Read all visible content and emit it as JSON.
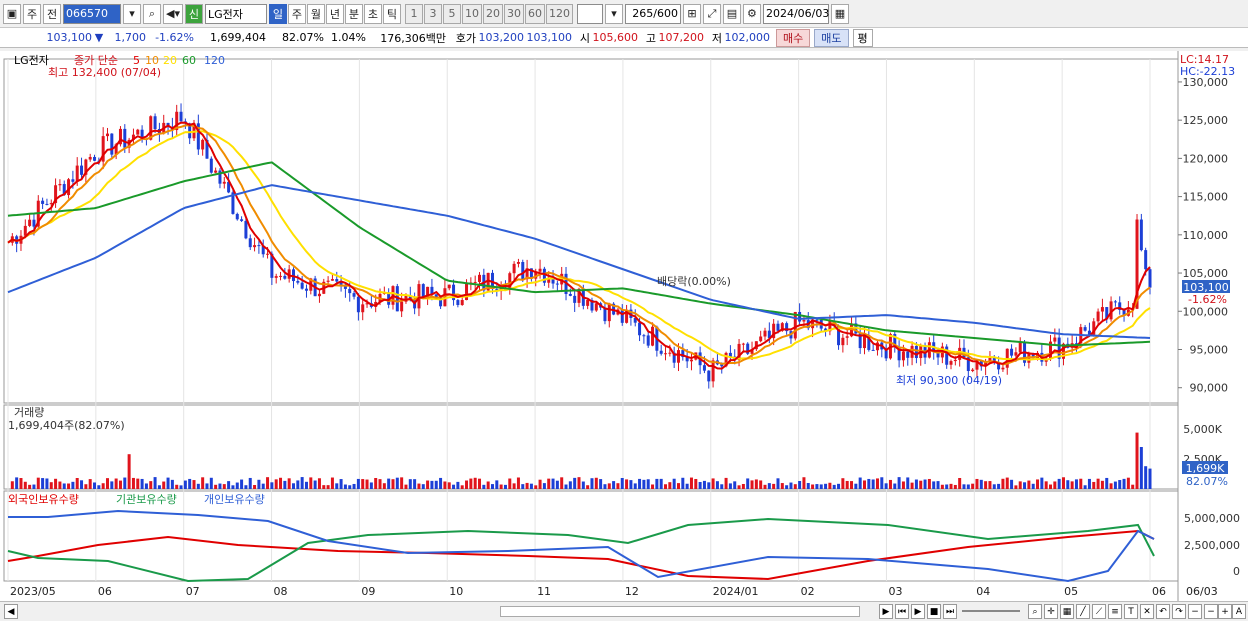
{
  "toolbar": {
    "period_unit": "주",
    "nav_prev": "전",
    "code": "066570",
    "badge": "신",
    "name": "LG전자",
    "periods": [
      "일",
      "주",
      "월",
      "년",
      "분",
      "초",
      "틱"
    ],
    "intervals": [
      "1",
      "3",
      "5",
      "10",
      "20",
      "30",
      "60",
      "120"
    ],
    "count": "265",
    "max": "/600",
    "date": "2024/06/03"
  },
  "quote": {
    "price": "103,100",
    "change": "1,700",
    "rate": "-1.62%",
    "volume": "1,699,404",
    "vol_ratio": "82.07%",
    "turnover": "1.04%",
    "amount": "176,306백만",
    "hoga_label": "호가",
    "ask": "103,200",
    "bid": "103,100",
    "open_label": "시",
    "open": "105,600",
    "high_label": "고",
    "high": "107,200",
    "low_label": "저",
    "low": "102,000",
    "buy": "매수",
    "sell": "매도",
    "avg": "평"
  },
  "chart_data": {
    "type": "candlestick",
    "title": "LG전자",
    "legend": {
      "series": "종가 단순",
      "ma": [
        "5",
        "10",
        "20",
        "60",
        "120"
      ]
    },
    "ma_colors": {
      "5": "#e00000",
      "10": "#f08c00",
      "20": "#ffe000",
      "60": "#1a9a2a",
      "120": "#2f5fd6"
    },
    "annotations": {
      "high": "최고 132,400 (07/04)",
      "low": "최저 90,300 (04/19)",
      "dividend": "배당락(0.00%)"
    },
    "lc": "LC:14.17",
    "hc": "HC:-22.13",
    "yticks": [
      "130,000",
      "125,000",
      "120,000",
      "115,000",
      "110,000",
      "105,000",
      "100,000",
      "95,000",
      "90,000"
    ],
    "ylim": [
      88000,
      133000
    ],
    "current_price": "103,100",
    "current_rate": "-1.62%",
    "x_labels": [
      "2023/05",
      "06",
      "07",
      "08",
      "09",
      "10",
      "11",
      "12",
      "2024/01",
      "02",
      "03",
      "04",
      "05",
      "06"
    ],
    "last_date": "06/03",
    "ma_points": {
      "120": [
        [
          "2023/05",
          102500
        ],
        [
          "06",
          107000
        ],
        [
          "07",
          113500
        ],
        [
          "08",
          116500
        ],
        [
          "09",
          114500
        ],
        [
          "10",
          112500
        ],
        [
          "11",
          109500
        ],
        [
          "12",
          105500
        ],
        [
          "2024/01",
          101500
        ],
        [
          "02",
          99000
        ],
        [
          "03",
          99500
        ],
        [
          "04",
          98500
        ],
        [
          "05",
          97000
        ],
        [
          "06",
          96500
        ]
      ],
      "60": [
        [
          "2023/05",
          112500
        ],
        [
          "06",
          113500
        ],
        [
          "07",
          117000
        ],
        [
          "08",
          119500
        ],
        [
          "09",
          111000
        ],
        [
          "10",
          104000
        ],
        [
          "11",
          102500
        ],
        [
          "12",
          103000
        ],
        [
          "2024/01",
          101000
        ],
        [
          "02",
          99500
        ],
        [
          "03",
          97500
        ],
        [
          "04",
          96500
        ],
        [
          "05",
          95500
        ],
        [
          "06",
          96000
        ]
      ]
    },
    "price_points": [
      [
        "2023/05",
        109000
      ],
      [
        "06",
        121000
      ],
      [
        "07",
        125500
      ],
      [
        "08",
        105000
      ],
      [
        "09",
        101500
      ],
      [
        "10",
        102000
      ],
      [
        "11",
        106000
      ],
      [
        "12",
        99000
      ],
      [
        "2024/01",
        92000
      ],
      [
        "02",
        98500
      ],
      [
        "03",
        95500
      ],
      [
        "04",
        93500
      ],
      [
        "05",
        95500
      ],
      [
        "06",
        103100
      ]
    ],
    "volume": {
      "label": "거래량",
      "value": "1,699,404주(82.07%)",
      "yticks": [
        "5,000K",
        "2,500K"
      ],
      "current": "1,699K",
      "ratio": "82.07%"
    },
    "holdings": {
      "series": [
        {
          "name": "외국인보유수량",
          "color": "#e00000"
        },
        {
          "name": "기관보유수량",
          "color": "#1a9a4a"
        },
        {
          "name": "개인보유수량",
          "color": "#2f5fd6"
        }
      ],
      "yticks": [
        "5,000,000",
        "2,500,000",
        "0"
      ]
    }
  }
}
